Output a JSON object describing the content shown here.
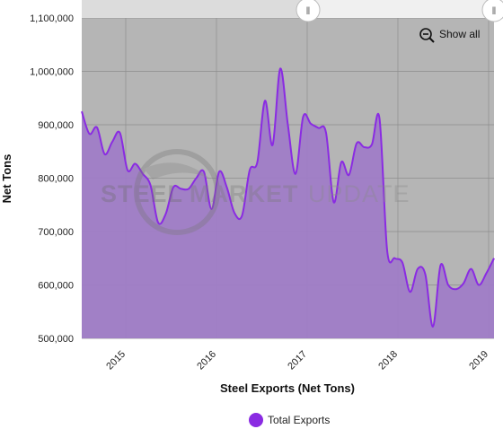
{
  "chart_data": {
    "type": "area",
    "title": "",
    "xlabel": "Steel Exports (Net Tons)",
    "ylabel": "Net Tons",
    "ylim": [
      500000,
      1100000
    ],
    "y_ticks": [
      "500,000",
      "600,000",
      "700,000",
      "800,000",
      "900,000",
      "1,000,000",
      "1,100,000"
    ],
    "x_ticks": [
      "2015",
      "2016",
      "2017",
      "2018",
      "2019"
    ],
    "legend_position": "bottom-center",
    "grid": true,
    "series": [
      {
        "name": "Total Exports",
        "color": "#8a2be2",
        "fill": "#a07cc8",
        "points": [
          [
            "2014-04",
            925000
          ],
          [
            "2014-05",
            883000
          ],
          [
            "2014-06",
            895000
          ],
          [
            "2014-07",
            845000
          ],
          [
            "2014-08",
            868000
          ],
          [
            "2014-09",
            885000
          ],
          [
            "2014-10",
            815000
          ],
          [
            "2014-11",
            827000
          ],
          [
            "2014-12",
            808000
          ],
          [
            "2015-01",
            787000
          ],
          [
            "2015-02",
            717000
          ],
          [
            "2015-03",
            733000
          ],
          [
            "2015-04",
            783000
          ],
          [
            "2015-05",
            780000
          ],
          [
            "2015-06",
            780000
          ],
          [
            "2015-07",
            800000
          ],
          [
            "2015-08",
            812000
          ],
          [
            "2015-09",
            742000
          ],
          [
            "2015-10",
            812000
          ],
          [
            "2015-11",
            783000
          ],
          [
            "2015-12",
            735000
          ],
          [
            "2016-01",
            730000
          ],
          [
            "2016-02",
            815000
          ],
          [
            "2016-03",
            830000
          ],
          [
            "2016-04",
            945000
          ],
          [
            "2016-05",
            862000
          ],
          [
            "2016-06",
            1005000
          ],
          [
            "2016-07",
            900000
          ],
          [
            "2016-08",
            808000
          ],
          [
            "2016-09",
            915000
          ],
          [
            "2016-10",
            902000
          ],
          [
            "2016-11",
            894000
          ],
          [
            "2016-12",
            885000
          ],
          [
            "2017-01",
            755000
          ],
          [
            "2017-02",
            830000
          ],
          [
            "2017-03",
            806000
          ],
          [
            "2017-04",
            865000
          ],
          [
            "2017-05",
            858000
          ],
          [
            "2017-06",
            863000
          ],
          [
            "2017-07",
            912000
          ],
          [
            "2017-08",
            665000
          ],
          [
            "2017-09",
            650000
          ],
          [
            "2017-10",
            642000
          ],
          [
            "2017-11",
            587000
          ],
          [
            "2017-12",
            630000
          ],
          [
            "2018-01",
            620000
          ],
          [
            "2018-02",
            522000
          ],
          [
            "2018-03",
            637000
          ],
          [
            "2018-04",
            600000
          ],
          [
            "2018-05",
            592000
          ],
          [
            "2018-06",
            603000
          ],
          [
            "2018-07",
            630000
          ],
          [
            "2018-08",
            600000
          ],
          [
            "2018-09",
            622000
          ],
          [
            "2018-10",
            650000
          ]
        ]
      }
    ]
  },
  "legend": {
    "label": "Total Exports",
    "marker_color": "#8a2be2"
  },
  "controls": {
    "show_all_label": "Show all",
    "zoom_icon": "zoom-out-icon",
    "navigator_handle_left": "‖",
    "navigator_handle_right": "‖"
  },
  "watermark": {
    "part1": "STEEL",
    "part2": "MARKET",
    "part3": "UPDATE"
  },
  "colors": {
    "plot_background": "#b5b5b5",
    "area_fill": "#a07cc8",
    "line": "#8a2be2",
    "grid": "#8e8e8e"
  }
}
